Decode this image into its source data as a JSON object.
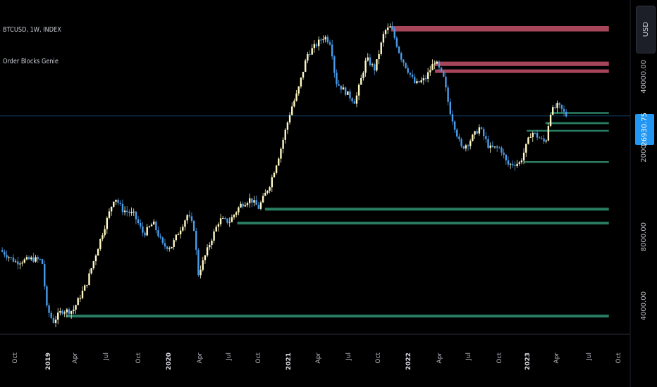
{
  "chart_data": {
    "type": "candlestick",
    "symbol_title": "BTCUSD, 1W, INDEX",
    "indicator_title": "Order Blocks Genie",
    "currency": "USD",
    "last_price": "26930.75",
    "y_scale": "log",
    "ylim": [
      3000,
      75000
    ],
    "y_ticks": [
      "40000.00",
      "20000.00",
      "8000.00",
      "4000.00"
    ],
    "x_ticks": [
      "Oct",
      "2019",
      "Apr",
      "Jul",
      "Oct",
      "2020",
      "Apr",
      "Jul",
      "Oct",
      "2021",
      "Apr",
      "Jul",
      "Oct",
      "2022",
      "Apr",
      "Jul",
      "Oct",
      "2023",
      "Apr",
      "Jul",
      "Oct"
    ],
    "x_tick_strong": [
      "2019",
      "2020",
      "2021",
      "2022",
      "2023"
    ],
    "x_start": "2018-07-01",
    "x_end": "2023-12-01",
    "up_color": "#fff8c4",
    "down_color": "#4a9be8",
    "bearish_block_color": "#c4526b",
    "bullish_block_color": "#2e8b6e",
    "price_line_color": "#2196f3",
    "anchors": [
      [
        "2018-07-01",
        7000
      ],
      [
        "2018-08-20",
        6200
      ],
      [
        "2018-10-10",
        6400
      ],
      [
        "2018-11-10",
        6300
      ],
      [
        "2018-11-25",
        3900
      ],
      [
        "2018-12-15",
        3400
      ],
      [
        "2019-01-10",
        3800
      ],
      [
        "2019-02-15",
        3800
      ],
      [
        "2019-03-30",
        5000
      ],
      [
        "2019-05-15",
        8000
      ],
      [
        "2019-06-26",
        12000
      ],
      [
        "2019-07-20",
        10500
      ],
      [
        "2019-08-25",
        10000
      ],
      [
        "2019-09-25",
        8200
      ],
      [
        "2019-10-25",
        9200
      ],
      [
        "2019-11-25",
        7300
      ],
      [
        "2019-12-20",
        7200
      ],
      [
        "2020-02-10",
        10000
      ],
      [
        "2020-03-01",
        8700
      ],
      [
        "2020-03-15",
        5500
      ],
      [
        "2020-04-20",
        7500
      ],
      [
        "2020-05-20",
        9500
      ],
      [
        "2020-06-20",
        9300
      ],
      [
        "2020-07-25",
        11000
      ],
      [
        "2020-08-25",
        11700
      ],
      [
        "2020-09-20",
        10700
      ],
      [
        "2020-10-25",
        13500
      ],
      [
        "2020-11-25",
        18500
      ],
      [
        "2020-12-31",
        29000
      ],
      [
        "2021-01-20",
        34000
      ],
      [
        "2021-02-20",
        50000
      ],
      [
        "2021-04-14",
        60000
      ],
      [
        "2021-05-05",
        56000
      ],
      [
        "2021-05-20",
        38000
      ],
      [
        "2021-07-20",
        31000
      ],
      [
        "2021-08-25",
        48000
      ],
      [
        "2021-09-20",
        43000
      ],
      [
        "2021-10-20",
        63000
      ],
      [
        "2021-11-10",
        66000
      ],
      [
        "2021-12-10",
        49000
      ],
      [
        "2022-01-25",
        37000
      ],
      [
        "2022-02-25",
        39000
      ],
      [
        "2022-03-28",
        47000
      ],
      [
        "2022-04-25",
        39000
      ],
      [
        "2022-05-12",
        29000
      ],
      [
        "2022-06-18",
        19500
      ],
      [
        "2022-07-10",
        20500
      ],
      [
        "2022-08-15",
        24000
      ],
      [
        "2022-09-15",
        19500
      ],
      [
        "2022-10-20",
        19500
      ],
      [
        "2022-11-10",
        16500
      ],
      [
        "2022-12-20",
        16800
      ],
      [
        "2023-01-25",
        23000
      ],
      [
        "2023-03-10",
        20500
      ],
      [
        "2023-03-25",
        28000
      ],
      [
        "2023-04-18",
        30000
      ],
      [
        "2023-05-15",
        26930
      ]
    ],
    "bearish_blocks": [
      {
        "start": "2021-11-10",
        "low": 63000,
        "high": 66500
      },
      {
        "start": "2022-03-28",
        "low": 44500,
        "high": 46500
      },
      {
        "start": "2022-03-28",
        "low": 41500,
        "high": 43000
      }
    ],
    "bullish_blocks": [
      {
        "start": "2023-03-25",
        "low": 27500,
        "high": 28000
      },
      {
        "start": "2023-03-10",
        "low": 24800,
        "high": 25300
      },
      {
        "start": "2023-01-10",
        "low": 23000,
        "high": 23400
      },
      {
        "start": "2023-01-01",
        "low": 16800,
        "high": 17100
      },
      {
        "start": "2020-10-10",
        "low": 10400,
        "high": 10700
      },
      {
        "start": "2020-07-15",
        "low": 9050,
        "high": 9300
      },
      {
        "start": "2019-01-25",
        "low": 3550,
        "high": 3650
      }
    ],
    "x_axis_title": "",
    "y_axis_title": ""
  }
}
